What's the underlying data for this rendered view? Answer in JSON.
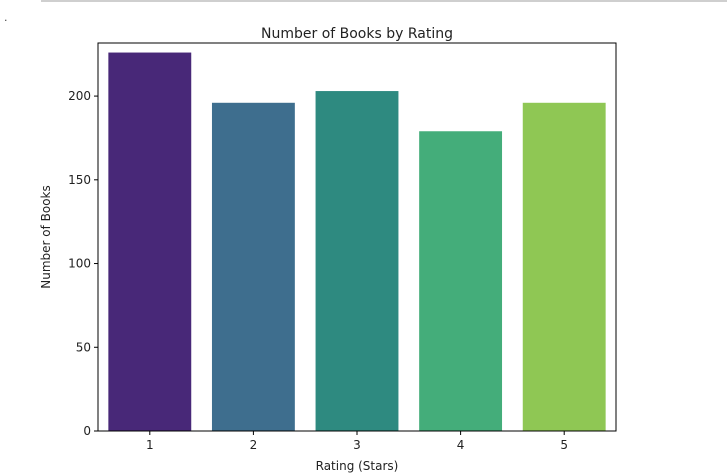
{
  "corner_mark": ".",
  "chart_data": {
    "type": "bar",
    "title": "Number of Books by Rating",
    "xlabel": "Rating (Stars)",
    "ylabel": "Number of Books",
    "categories": [
      "1",
      "2",
      "3",
      "4",
      "5"
    ],
    "values": [
      226,
      196,
      203,
      179,
      196
    ],
    "colors": [
      "#482878",
      "#3e6e8e",
      "#2e8a80",
      "#44ad7a",
      "#8fc754"
    ],
    "ylim": [
      0,
      231.7
    ],
    "yticks": [
      0,
      50,
      100,
      150,
      200
    ],
    "grid": false,
    "legend": "none"
  }
}
